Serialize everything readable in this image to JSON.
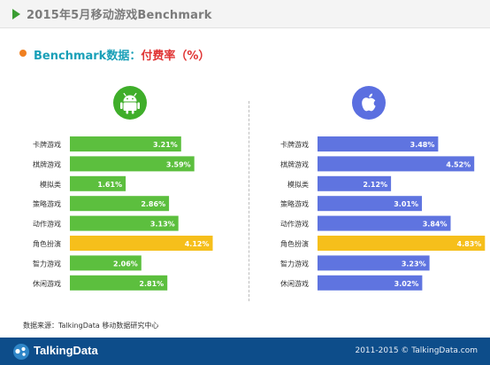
{
  "page_title": "2015年5月移动游戏Benchmark",
  "subtitle": {
    "main": "Benchmark数据：",
    "metric": "付费率（%）"
  },
  "chart_data": [
    {
      "type": "bar",
      "platform_icon": "android-icon",
      "color": "#5cbf3e",
      "highlight_color": "#f6bf1b",
      "highlight_category": "角色扮演",
      "categories": [
        "卡牌游戏",
        "棋牌游戏",
        "模拟类",
        "策略游戏",
        "动作游戏",
        "角色扮演",
        "智力游戏",
        "休闲游戏"
      ],
      "values": [
        3.21,
        3.59,
        1.61,
        2.86,
        3.13,
        4.12,
        2.06,
        2.81
      ],
      "labels": [
        "3.21%",
        "3.59%",
        "1.61%",
        "2.86%",
        "3.13%",
        "4.12%",
        "2.06%",
        "2.81%"
      ],
      "xlim": [
        0,
        5
      ],
      "orientation": "horizontal"
    },
    {
      "type": "bar",
      "platform_icon": "apple-icon",
      "color": "#5f74e0",
      "highlight_color": "#f6bf1b",
      "highlight_category": "角色扮演",
      "categories": [
        "卡牌游戏",
        "棋牌游戏",
        "模拟类",
        "策略游戏",
        "动作游戏",
        "角色扮演",
        "智力游戏",
        "休闲游戏"
      ],
      "values": [
        3.48,
        4.52,
        2.12,
        3.01,
        3.84,
        4.83,
        3.23,
        3.02
      ],
      "labels": [
        "3.48%",
        "4.52%",
        "2.12%",
        "3.01%",
        "3.84%",
        "4.83%",
        "3.23%",
        "3.02%"
      ],
      "xlim": [
        0,
        5
      ],
      "orientation": "horizontal"
    }
  ],
  "icons": {
    "android": {
      "bg": "#3fae2a"
    },
    "apple": {
      "bg": "#5b6fe0"
    }
  },
  "source": "数据来源：TalkingData 移动数据研究中心",
  "footer": {
    "brand": "TalkingData",
    "copyright": "2011-2015 © TalkingData.com",
    "bg": "#0d4d8a"
  }
}
